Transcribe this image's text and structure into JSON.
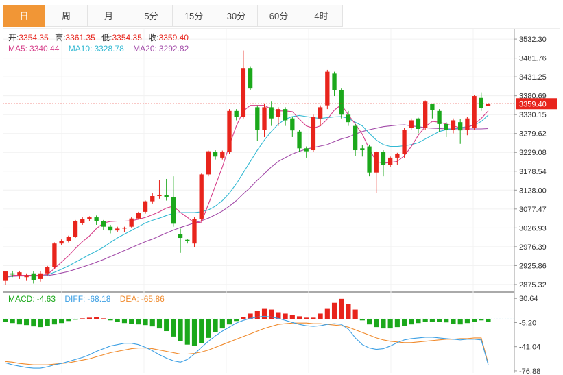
{
  "tabs": [
    {
      "label": "日",
      "active": true
    },
    {
      "label": "周",
      "active": false
    },
    {
      "label": "月",
      "active": false
    },
    {
      "label": "5分",
      "active": false
    },
    {
      "label": "15分",
      "active": false
    },
    {
      "label": "30分",
      "active": false
    },
    {
      "label": "60分",
      "active": false
    },
    {
      "label": "4时",
      "active": false
    }
  ],
  "ohlc": {
    "open_label": "开:",
    "open": "3354.35",
    "high_label": "高:",
    "high": "3361.35",
    "low_label": "低:",
    "low": "3354.35",
    "close_label": "收:",
    "close": "3359.40"
  },
  "ma": {
    "ma5_label": "MA5:",
    "ma5": "3340.44",
    "ma10_label": "MA10:",
    "ma10": "3328.78",
    "ma20_label": "MA20:",
    "ma20": "3292.82"
  },
  "macd": {
    "macd_label": "MACD:",
    "macd": "-4.63",
    "diff_label": "DIFF:",
    "diff": "-68.18",
    "dea_label": "DEA:",
    "dea": "-65.86"
  },
  "colors": {
    "up": "#e8241c",
    "down": "#1ba81b",
    "ma5": "#d63f8a",
    "ma10": "#33b9d3",
    "ma20": "#a24aa8",
    "diff": "#3ea0e4",
    "dea": "#f08a2c",
    "last_price": "#e8241c",
    "tab_active": "#f19636"
  },
  "chart_data": {
    "type": "candlestick",
    "price_axis": {
      "ticks": [
        "3532.30",
        "3481.76",
        "3431.25",
        "3380.69",
        "3330.15",
        "3279.62",
        "3229.08",
        "3178.54",
        "3128.00",
        "3077.47",
        "3026.93",
        "2976.39",
        "2925.86",
        "2875.32"
      ],
      "range": [
        2855,
        3560
      ]
    },
    "last_price": "3359.40",
    "candles": [
      [
        2885,
        2910,
        2875,
        2905
      ],
      [
        2905,
        2902,
        2895,
        2912
      ],
      [
        2900,
        2908,
        2890,
        2912
      ],
      [
        2895,
        2900,
        2885,
        2905
      ],
      [
        2905,
        2888,
        2878,
        2910
      ],
      [
        2890,
        2905,
        2883,
        2910
      ],
      [
        2905,
        2922,
        2900,
        2925
      ],
      [
        2922,
        2985,
        2918,
        2988
      ],
      [
        2985,
        2992,
        2980,
        2996
      ],
      [
        2992,
        3003,
        2988,
        3006
      ],
      [
        3003,
        3045,
        3000,
        3048
      ],
      [
        3040,
        3050,
        3035,
        3055
      ],
      [
        3050,
        3055,
        3045,
        3058
      ],
      [
        3055,
        3045,
        3035,
        3060
      ],
      [
        3045,
        3030,
        3022,
        3048
      ],
      [
        3030,
        3020,
        3012,
        3035
      ],
      [
        3020,
        3025,
        3015,
        3030
      ],
      [
        3025,
        3027,
        3015,
        3030
      ],
      [
        3030,
        3052,
        3028,
        3055
      ],
      [
        3052,
        3068,
        3050,
        3070
      ],
      [
        3070,
        3098,
        3065,
        3100
      ],
      [
        3098,
        3112,
        3092,
        3120
      ],
      [
        3112,
        3115,
        3105,
        3155
      ],
      [
        3115,
        3110,
        3100,
        3158
      ],
      [
        3110,
        3038,
        3030,
        3165
      ],
      [
        3010,
        3000,
        2960,
        3025
      ],
      [
        2995,
        2992,
        2985,
        2998
      ],
      [
        2985,
        3050,
        2975,
        3055
      ],
      [
        3050,
        3170,
        3045,
        3172
      ],
      [
        3170,
        3232,
        3165,
        3234
      ],
      [
        3230,
        3218,
        3210,
        3235
      ],
      [
        3215,
        3230,
        3210,
        3234
      ],
      [
        3230,
        3340,
        3225,
        3345
      ],
      [
        3340,
        3325,
        3315,
        3345
      ],
      [
        3325,
        3455,
        3320,
        3502
      ],
      [
        3455,
        3400,
        3395,
        3458
      ],
      [
        3350,
        3290,
        3260,
        3355
      ],
      [
        3290,
        3350,
        3270,
        3360
      ],
      [
        3350,
        3320,
        3300,
        3365
      ],
      [
        3325,
        3345,
        3300,
        3350
      ],
      [
        3345,
        3315,
        3300,
        3350
      ],
      [
        3320,
        3288,
        3270,
        3325
      ],
      [
        3285,
        3240,
        3230,
        3290
      ],
      [
        3240,
        3232,
        3215,
        3245
      ],
      [
        3235,
        3325,
        3230,
        3330
      ],
      [
        3320,
        3350,
        3300,
        3355
      ],
      [
        3355,
        3445,
        3345,
        3450
      ],
      [
        3440,
        3395,
        3380,
        3445
      ],
      [
        3395,
        3330,
        3320,
        3400
      ],
      [
        3330,
        3310,
        3300,
        3340
      ],
      [
        3300,
        3235,
        3220,
        3305
      ],
      [
        3240,
        3235,
        3218,
        3248
      ],
      [
        3245,
        3175,
        3165,
        3250
      ],
      [
        3175,
        3230,
        3120,
        3232
      ],
      [
        3230,
        3195,
        3165,
        3235
      ],
      [
        3195,
        3215,
        3190,
        3218
      ],
      [
        3215,
        3225,
        3195,
        3228
      ],
      [
        3225,
        3290,
        3215,
        3295
      ],
      [
        3295,
        3315,
        3290,
        3320
      ],
      [
        3320,
        3292,
        3280,
        3322
      ],
      [
        3295,
        3365,
        3290,
        3368
      ],
      [
        3358,
        3342,
        3320,
        3360
      ],
      [
        3340,
        3305,
        3285,
        3345
      ],
      [
        3305,
        3290,
        3270,
        3310
      ],
      [
        3290,
        3315,
        3280,
        3320
      ],
      [
        3310,
        3288,
        3252,
        3318
      ],
      [
        3290,
        3320,
        3275,
        3325
      ],
      [
        3295,
        3380,
        3290,
        3382
      ],
      [
        3375,
        3348,
        3340,
        3390
      ],
      [
        3354.35,
        3359.4,
        3354.35,
        3361.35
      ]
    ],
    "ma5": [
      2895,
      2900,
      2900,
      2900,
      2900,
      2900,
      2902,
      2918,
      2935,
      2952,
      2972,
      2990,
      3005,
      3025,
      3040,
      3044,
      3045,
      3045,
      3046,
      3050,
      3055,
      3062,
      3070,
      3080,
      3085,
      3068,
      3055,
      3040,
      3042,
      3090,
      3140,
      3190,
      3248,
      3300,
      3340,
      3355,
      3355,
      3355,
      3345,
      3340,
      3340,
      3338,
      3318,
      3300,
      3294,
      3300,
      3318,
      3342,
      3357,
      3330,
      3305,
      3278,
      3238,
      3205,
      3200,
      3202,
      3205,
      3220,
      3245,
      3275,
      3298,
      3312,
      3310,
      3305,
      3300,
      3295,
      3295,
      3305,
      3320,
      3340.44
    ],
    "ma10": [
      2895,
      2898,
      2900,
      2900,
      2900,
      2900,
      2901,
      2908,
      2916,
      2925,
      2935,
      2945,
      2955,
      2965,
      2975,
      2988,
      3000,
      3010,
      3020,
      3030,
      3040,
      3047,
      3053,
      3060,
      3066,
      3068,
      3068,
      3068,
      3070,
      3075,
      3085,
      3100,
      3120,
      3145,
      3175,
      3205,
      3235,
      3262,
      3285,
      3305,
      3318,
      3325,
      3328,
      3325,
      3322,
      3320,
      3322,
      3324,
      3325,
      3320,
      3310,
      3300,
      3280,
      3262,
      3250,
      3245,
      3245,
      3247,
      3250,
      3255,
      3265,
      3275,
      3285,
      3290,
      3292,
      3295,
      3298,
      3302,
      3312,
      3328.78
    ],
    "ma20": [
      2895,
      2897,
      2898,
      2898,
      2898,
      2898,
      2899,
      2902,
      2906,
      2910,
      2916,
      2922,
      2928,
      2935,
      2942,
      2950,
      2958,
      2966,
      2974,
      2982,
      2990,
      2997,
      3005,
      3013,
      3021,
      3028,
      3034,
      3040,
      3046,
      3053,
      3062,
      3072,
      3085,
      3100,
      3118,
      3135,
      3155,
      3172,
      3190,
      3205,
      3215,
      3225,
      3232,
      3238,
      3242,
      3246,
      3250,
      3258,
      3265,
      3270,
      3278,
      3285,
      3290,
      3294,
      3298,
      3300,
      3302,
      3303,
      3300,
      3298,
      3295,
      3294,
      3293,
      3292,
      3292,
      3292,
      3292,
      3292,
      3292,
      3292.82
    ],
    "macd_axis": {
      "ticks": [
        "30.64",
        "-5.20",
        "-41.04",
        "-76.88"
      ],
      "range": [
        -80,
        40
      ]
    },
    "macd_hist": [
      -4,
      -6,
      -8,
      -9,
      -11,
      -12,
      -10,
      -8,
      -6,
      -3,
      -1,
      1,
      2,
      3,
      1,
      -2,
      -4,
      -6,
      -7,
      -8,
      -9,
      -11,
      -14,
      -18,
      -26,
      -33,
      -38,
      -40,
      -36,
      -28,
      -20,
      -14,
      -8,
      -3,
      3,
      8,
      12,
      16,
      14,
      10,
      8,
      6,
      4,
      2,
      2,
      8,
      16,
      24,
      30,
      22,
      14,
      -2,
      -8,
      -12,
      -14,
      -14,
      -12,
      -10,
      -8,
      -6,
      -4,
      -4,
      -4,
      -5,
      -7,
      -8,
      -6,
      -4,
      -2,
      -4.63
    ],
    "macd_diff": [
      -65,
      -68,
      -70,
      -72,
      -73,
      -73,
      -71,
      -68,
      -66,
      -63,
      -60,
      -57,
      -53,
      -48,
      -44,
      -40,
      -38,
      -36,
      -36,
      -38,
      -42,
      -47,
      -53,
      -58,
      -62,
      -64,
      -60,
      -52,
      -42,
      -33,
      -25,
      -18,
      -12,
      -6,
      -2,
      1,
      3,
      4,
      3,
      1,
      -2,
      -5,
      -8,
      -10,
      -11,
      -10,
      -8,
      -7,
      -8,
      -15,
      -28,
      -38,
      -43,
      -45,
      -44,
      -40,
      -35,
      -31,
      -29,
      -28,
      -27,
      -27,
      -28,
      -29,
      -30,
      -31,
      -30,
      -30,
      -31,
      -68.18
    ],
    "macd_dea": [
      -63,
      -64,
      -66,
      -67,
      -68,
      -68,
      -68,
      -67,
      -66,
      -65,
      -63,
      -61,
      -59,
      -56,
      -53,
      -50,
      -48,
      -46,
      -44,
      -43,
      -43,
      -44,
      -46,
      -48,
      -50,
      -52,
      -52,
      -51,
      -49,
      -46,
      -42,
      -38,
      -34,
      -30,
      -26,
      -22,
      -18,
      -14,
      -11,
      -8,
      -7,
      -6,
      -6,
      -6,
      -7,
      -7,
      -8,
      -9,
      -10,
      -12,
      -16,
      -20,
      -24,
      -28,
      -31,
      -33,
      -34,
      -35,
      -35,
      -34,
      -33,
      -32,
      -31,
      -30,
      -30,
      -29,
      -29,
      -28,
      -28,
      -65.86
    ]
  }
}
